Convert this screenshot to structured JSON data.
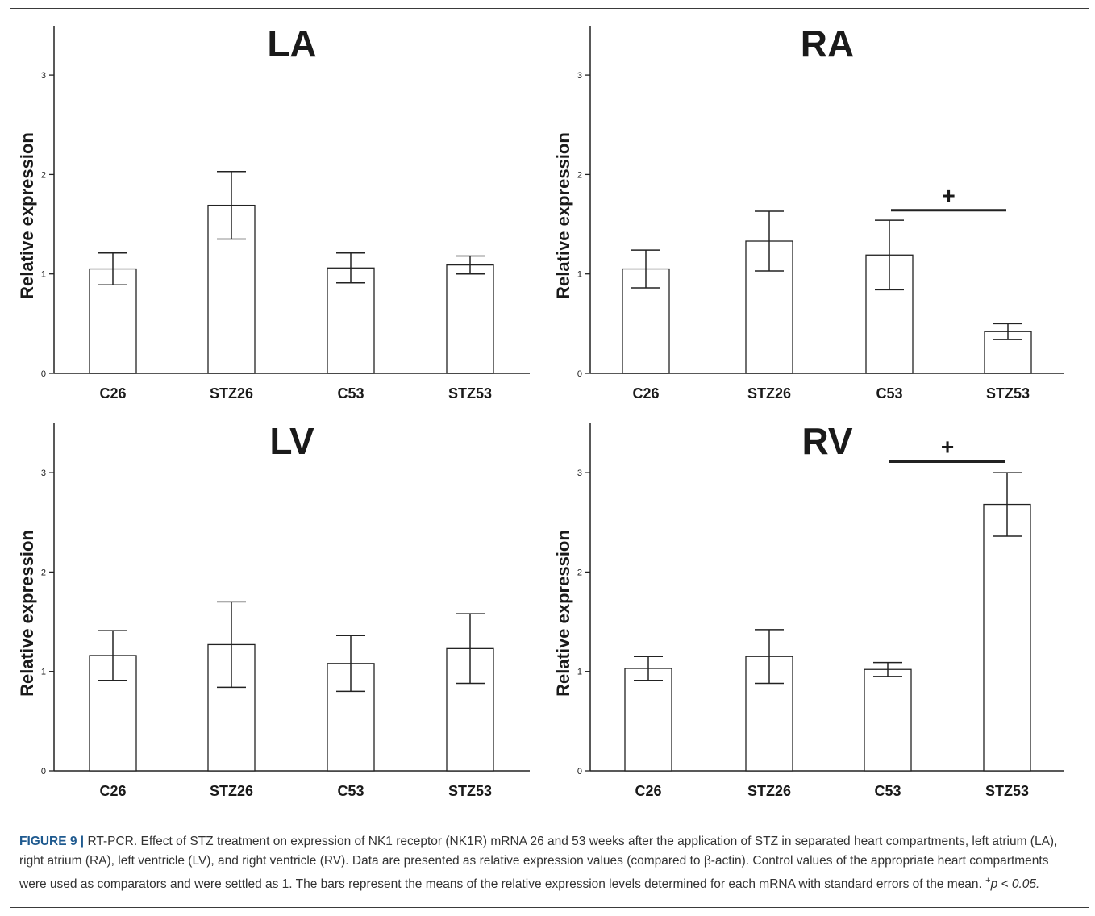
{
  "figure": {
    "label": "FIGURE 9 |",
    "caption": "RT-PCR. Effect of STZ treatment on expression of NK1 receptor (NK1R) mRNA 26 and 53 weeks after the application of STZ in separated heart compartments, left atrium (LA), right atrium (RA), left ventricle (LV), and right ventricle (RV). Data are presented as relative expression values (compared to β-actin). Control values of the appropriate heart compartments were used as comparators and were settled as 1. The bars represent the means of the relative expression levels determined for each mRNA with standard errors of the mean. ",
    "caption_sup": "+",
    "caption_end": "p < 0.05."
  },
  "chart_data": [
    {
      "type": "bar",
      "title": "LA",
      "xlabel": "",
      "ylabel": "Relative expression",
      "ylim": [
        0,
        3.5
      ],
      "yticks": [
        0,
        1,
        2,
        3
      ],
      "categories": [
        "C26",
        "STZ26",
        "C53",
        "STZ53"
      ],
      "values": [
        1.05,
        1.69,
        1.06,
        1.09
      ],
      "errors": [
        0.16,
        0.34,
        0.15,
        0.09
      ],
      "significance": []
    },
    {
      "type": "bar",
      "title": "RA",
      "xlabel": "",
      "ylabel": "Relative expression",
      "ylim": [
        0,
        3.5
      ],
      "yticks": [
        0,
        1,
        2,
        3
      ],
      "categories": [
        "C26",
        "STZ26",
        "C53",
        "STZ53"
      ],
      "values": [
        1.05,
        1.33,
        1.19,
        0.42
      ],
      "errors": [
        0.19,
        0.3,
        0.35,
        0.08
      ],
      "significance": [
        {
          "from": 2,
          "to": 3,
          "level": 1.64,
          "symbol": "+"
        }
      ]
    },
    {
      "type": "bar",
      "title": "LV",
      "xlabel": "",
      "ylabel": "Relative expression",
      "ylim": [
        0,
        3.5
      ],
      "yticks": [
        0,
        1,
        2,
        3
      ],
      "categories": [
        "C26",
        "STZ26",
        "C53",
        "STZ53"
      ],
      "values": [
        1.16,
        1.27,
        1.08,
        1.23
      ],
      "errors": [
        0.25,
        0.43,
        0.28,
        0.35
      ],
      "significance": []
    },
    {
      "type": "bar",
      "title": "RV",
      "xlabel": "",
      "ylabel": "Relative expression",
      "ylim": [
        0,
        3.5
      ],
      "yticks": [
        0,
        1,
        2,
        3
      ],
      "categories": [
        "C26",
        "STZ26",
        "C53",
        "STZ53"
      ],
      "values": [
        1.03,
        1.15,
        1.02,
        2.68
      ],
      "errors": [
        0.12,
        0.27,
        0.07,
        0.32
      ],
      "significance": [
        {
          "from": 2,
          "to": 3,
          "level": 3.11,
          "symbol": "+"
        }
      ]
    }
  ]
}
